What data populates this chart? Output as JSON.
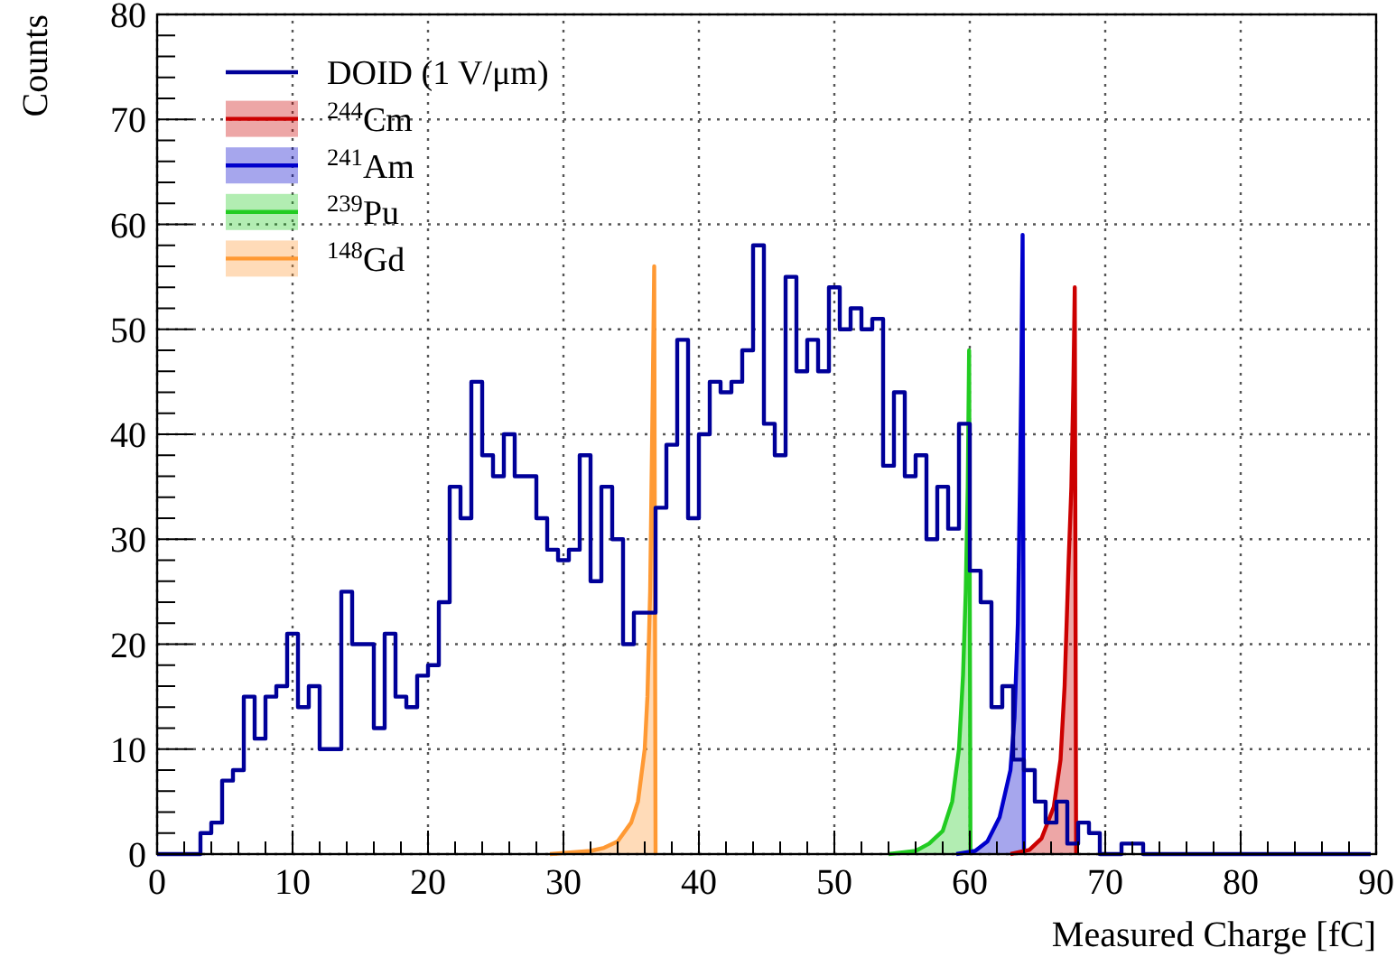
{
  "chart_data": {
    "type": "histogram",
    "xlabel": "Measured Charge [fC]",
    "ylabel": "Counts",
    "xlim": [
      0,
      90
    ],
    "ylim": [
      0,
      80
    ],
    "xticks": [
      0,
      10,
      20,
      30,
      40,
      50,
      60,
      70,
      80,
      90
    ],
    "yticks": [
      0,
      10,
      20,
      30,
      40,
      50,
      60,
      70,
      80
    ],
    "grid": true,
    "legend": "top left",
    "bins": [
      0,
      0.8,
      1.6,
      2.4,
      3.2,
      4,
      4.8,
      5.6,
      6.4,
      7.2,
      8,
      8.8,
      9.6,
      10.4,
      11.2,
      12,
      12.8,
      13.6,
      14.4,
      15.2,
      16,
      16.8,
      17.6,
      18.4,
      19.2,
      20,
      20.8,
      21.6,
      22.4,
      23.2,
      24,
      24.8,
      25.6,
      26.4,
      27.2,
      28,
      28.8,
      29.6,
      30.4,
      31.2,
      32,
      32.8,
      33.6,
      34.4,
      35.2,
      36,
      36.8,
      37.6,
      38.4,
      39.2,
      40,
      40.8,
      41.6,
      42.4,
      43.2,
      44,
      44.8,
      45.6,
      46.4,
      47.2,
      48,
      48.8,
      49.6,
      50.4,
      51.2,
      52,
      52.8,
      53.6,
      54.4,
      55.2,
      56,
      56.8,
      57.6,
      58.4,
      59.2,
      60,
      60.8,
      61.6,
      62.4,
      63.2,
      64,
      64.8,
      65.6,
      66.4,
      67.2,
      68,
      68.8,
      69.6,
      70.4,
      71.2,
      72,
      72.8,
      73.6,
      74.4,
      75.2,
      76,
      76.8,
      77.6,
      78.4,
      79.2,
      80,
      80.8,
      81.6,
      82.4,
      83.2,
      84,
      84.8,
      85.6,
      86.4,
      87.2,
      88,
      88.8,
      89.6
    ],
    "series": [
      {
        "name": "DOID (1 V/μm)",
        "color": "#000099",
        "values": [
          0,
          0,
          0,
          0,
          2,
          3,
          7,
          8,
          15,
          11,
          15,
          16,
          21,
          14,
          16,
          10,
          10,
          25,
          20,
          20,
          12,
          21,
          15,
          14,
          17,
          18,
          24,
          35,
          32,
          45,
          38,
          36,
          40,
          36,
          36,
          32,
          29,
          28,
          29,
          38,
          26,
          35,
          30,
          20,
          23,
          23,
          33,
          39,
          49,
          32,
          40,
          45,
          44,
          45,
          48,
          58,
          41,
          38,
          55,
          46,
          49,
          46,
          54,
          50,
          52,
          50,
          51,
          37,
          44,
          36,
          38,
          30,
          35,
          31,
          41,
          27,
          24,
          14,
          16,
          9,
          8,
          5,
          3,
          5,
          1,
          3,
          2,
          0,
          0,
          1,
          1,
          0,
          0,
          0,
          0,
          0,
          0,
          0,
          0,
          0,
          0,
          0,
          0,
          0,
          0,
          0,
          0,
          0,
          0,
          0,
          0,
          0
        ]
      },
      {
        "name": "$^{244}$Cm",
        "type": "area",
        "color": "#cc0000",
        "x": [
          63,
          64.4,
          65.3,
          66.2,
          66.7,
          67,
          67.3,
          67.5,
          67.65,
          67.75,
          67.85
        ],
        "values": [
          0,
          0.4,
          1.5,
          4.5,
          9,
          16,
          28,
          35,
          45,
          54,
          0
        ]
      },
      {
        "name": "$^{241}$Am",
        "type": "area",
        "color": "#0000cc",
        "x": [
          59,
          60.4,
          61.3,
          62.2,
          63,
          63.3,
          63.55,
          63.7,
          63.8,
          63.9,
          64
        ],
        "values": [
          0,
          0.3,
          1.2,
          3.5,
          8,
          13,
          22,
          35,
          45,
          59,
          0
        ]
      },
      {
        "name": "$^{239}$Pu",
        "type": "area",
        "color": "#22cc22",
        "x": [
          54,
          56,
          57,
          58,
          58.7,
          59.2,
          59.5,
          59.7,
          59.85,
          59.95,
          60.05
        ],
        "values": [
          0,
          0.3,
          1,
          2.2,
          5,
          10,
          17,
          25,
          35,
          48,
          0
        ]
      },
      {
        "name": "$^{148}$Gd",
        "type": "area",
        "color": "#ff9933",
        "x": [
          29,
          32,
          33,
          34,
          35,
          35.5,
          36,
          36.2,
          36.4,
          36.5,
          36.6,
          36.7,
          36.8
        ],
        "values": [
          0,
          0.3,
          0.6,
          1.2,
          3,
          5,
          10,
          15,
          25,
          35,
          45,
          56,
          0
        ]
      }
    ]
  }
}
